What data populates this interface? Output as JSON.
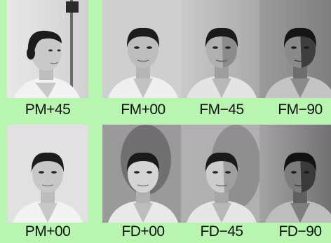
{
  "cells": [
    {
      "label": "PM+45"
    },
    {
      "label": "FM+00"
    },
    {
      "label": "FM−45"
    },
    {
      "label": "FM−90"
    },
    {
      "label": "PM+00"
    },
    {
      "label": "FD+00"
    },
    {
      "label": "FD−45"
    },
    {
      "label": "FD−90"
    }
  ]
}
